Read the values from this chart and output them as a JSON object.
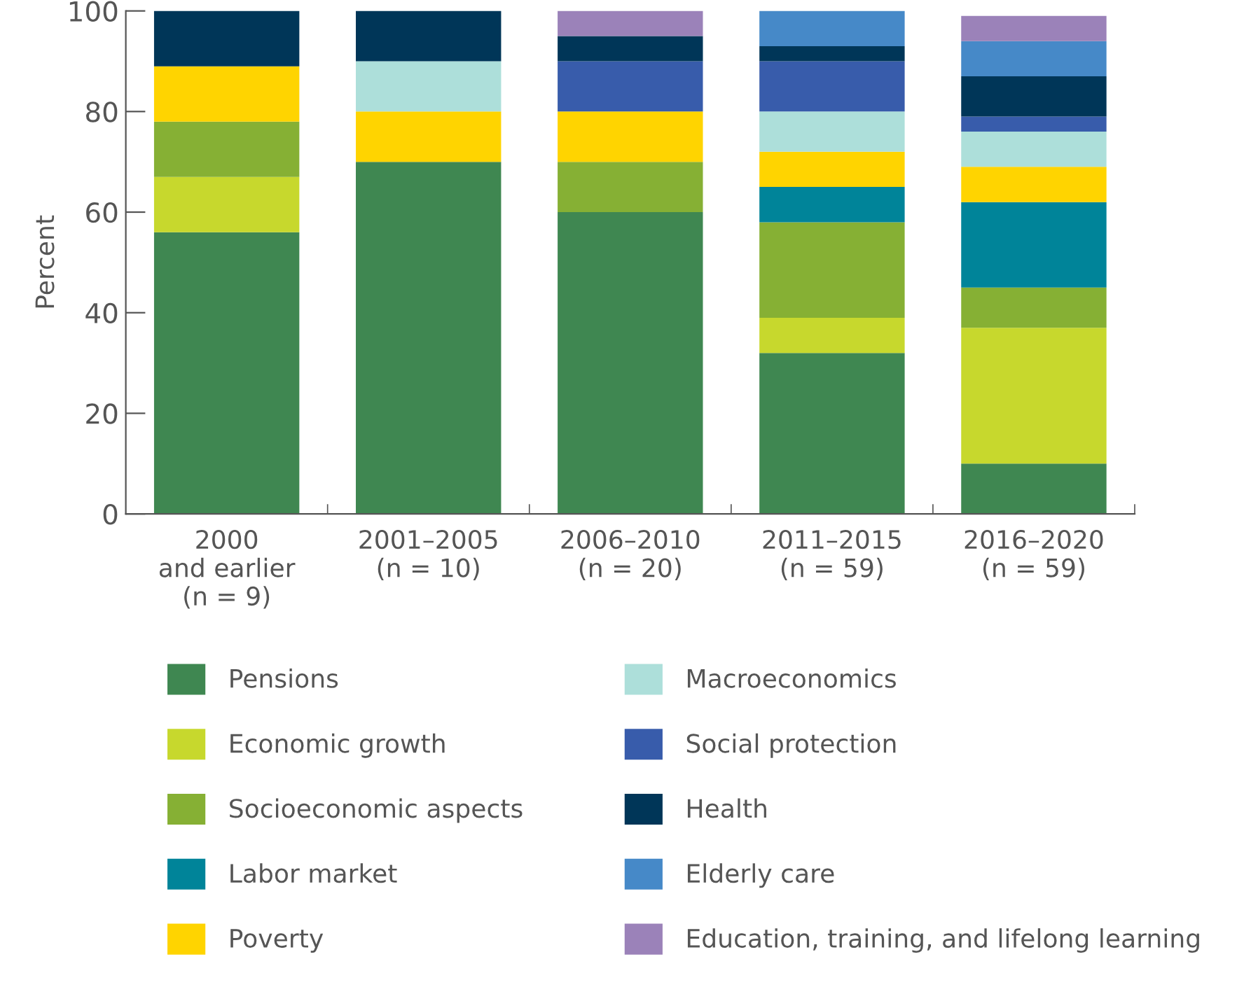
{
  "chart_data": {
    "type": "bar",
    "stacked": true,
    "ylabel": "Percent",
    "categories": [
      "2000\nand earlier\n(n = 9)",
      "2001–2005\n(n = 10)",
      "2006–2010\n(n = 20)",
      "2011–2015\n(n = 59)",
      "2016–2020\n(n = 59)"
    ],
    "ylim": [
      0,
      100
    ],
    "yticks": [
      0,
      20,
      40,
      60,
      80,
      100
    ],
    "grid": false,
    "legend": "bottom",
    "series": [
      {
        "name": "Pensions",
        "color": "#3f8751",
        "values": [
          56,
          70,
          60,
          32,
          10
        ]
      },
      {
        "name": "Economic growth",
        "color": "#c7d82d",
        "values": [
          11,
          0,
          0,
          7,
          27
        ]
      },
      {
        "name": "Socioeconomic aspects",
        "color": "#86b034",
        "values": [
          11,
          0,
          10,
          19,
          8
        ]
      },
      {
        "name": "Labor market",
        "color": "#008499",
        "values": [
          0,
          0,
          0,
          7,
          17
        ]
      },
      {
        "name": "Poverty",
        "color": "#ffd400",
        "values": [
          11,
          10,
          10,
          7,
          7
        ]
      },
      {
        "name": "Macroeconomics",
        "color": "#addfda",
        "values": [
          0,
          10,
          0,
          8,
          7
        ]
      },
      {
        "name": "Social protection",
        "color": "#385cab",
        "values": [
          0,
          0,
          10,
          10,
          3
        ]
      },
      {
        "name": "Health",
        "color": "#003658",
        "values": [
          11,
          10,
          5,
          3,
          8
        ]
      },
      {
        "name": "Elderly care",
        "color": "#4689c8",
        "values": [
          0,
          0,
          0,
          7,
          7
        ]
      },
      {
        "name": "Education, training, and lifelong learning",
        "color": "#9b82b9",
        "values": [
          0,
          0,
          5,
          0,
          5
        ]
      }
    ]
  }
}
